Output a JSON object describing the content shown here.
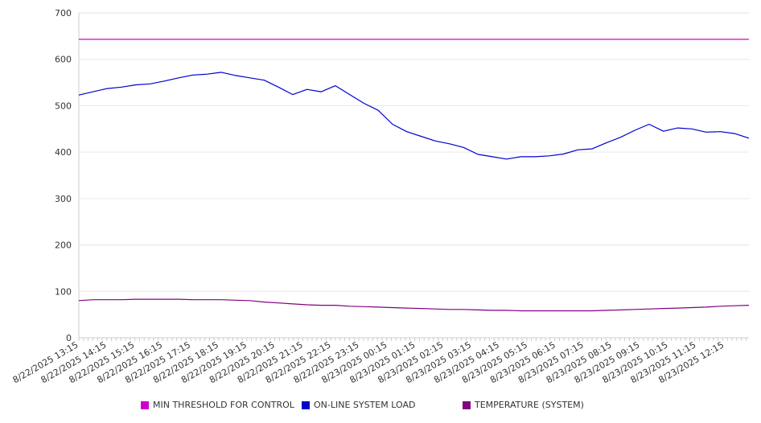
{
  "chart_data": {
    "type": "line",
    "title": "",
    "xlabel": "",
    "ylabel": "",
    "ylim": [
      0,
      700
    ],
    "y_ticks": [
      "0",
      "100",
      "200",
      "300",
      "400",
      "500",
      "600",
      "700"
    ],
    "x_tick_labels": [
      "8/22/2025 13:15",
      "8/22/2025 14:15",
      "8/22/2025 15:15",
      "8/22/2025 16:15",
      "8/22/2025 17:15",
      "8/22/2025 18:15",
      "8/22/2025 19:15",
      "8/22/2025 20:15",
      "8/22/2025 21:15",
      "8/22/2025 22:15",
      "8/22/2025 23:15",
      "8/23/2025 00:15",
      "8/23/2025 01:15",
      "8/23/2025 02:15",
      "8/23/2025 03:15",
      "8/23/2025 04:15",
      "8/23/2025 05:15",
      "8/23/2025 06:15",
      "8/23/2025 07:15",
      "8/23/2025 08:15",
      "8/23/2025 09:15",
      "8/23/2025 10:15",
      "8/23/2025 11:15",
      "8/23/2025 12:15"
    ],
    "grid": true,
    "legend_position": "bottom",
    "x": [
      "8/22/2025 13:15",
      "8/22/2025 13:45",
      "8/22/2025 14:15",
      "8/22/2025 14:45",
      "8/22/2025 15:15",
      "8/22/2025 15:45",
      "8/22/2025 16:15",
      "8/22/2025 16:45",
      "8/22/2025 17:15",
      "8/22/2025 17:45",
      "8/22/2025 18:15",
      "8/22/2025 18:45",
      "8/22/2025 19:15",
      "8/22/2025 19:45",
      "8/22/2025 20:15",
      "8/22/2025 20:45",
      "8/22/2025 21:15",
      "8/22/2025 21:45",
      "8/22/2025 22:15",
      "8/22/2025 22:45",
      "8/22/2025 23:15",
      "8/22/2025 23:45",
      "8/23/2025 00:15",
      "8/23/2025 00:45",
      "8/23/2025 01:15",
      "8/23/2025 01:45",
      "8/23/2025 02:15",
      "8/23/2025 02:45",
      "8/23/2025 03:15",
      "8/23/2025 03:45",
      "8/23/2025 04:15",
      "8/23/2025 04:45",
      "8/23/2025 05:15",
      "8/23/2025 05:45",
      "8/23/2025 06:15",
      "8/23/2025 06:45",
      "8/23/2025 07:15",
      "8/23/2025 07:45",
      "8/23/2025 08:15",
      "8/23/2025 08:45",
      "8/23/2025 09:15",
      "8/23/2025 09:45",
      "8/23/2025 10:15",
      "8/23/2025 10:45",
      "8/23/2025 11:15",
      "8/23/2025 11:45",
      "8/23/2025 12:15",
      "8/23/2025 12:45"
    ],
    "series": [
      {
        "name": "MIN THRESHOLD FOR CONTROL",
        "color": "#cc00cc",
        "values": [
          643,
          643,
          643,
          643,
          643,
          643,
          643,
          643,
          643,
          643,
          643,
          643,
          643,
          643,
          643,
          643,
          643,
          643,
          643,
          643,
          643,
          643,
          643,
          643,
          643,
          643,
          643,
          643,
          643,
          643,
          643,
          643,
          643,
          643,
          643,
          643,
          643,
          643,
          643,
          643,
          643,
          643,
          643,
          643,
          643,
          643,
          643,
          643
        ]
      },
      {
        "name": "ON-LINE SYSTEM LOAD",
        "color": "#0000cc",
        "values": [
          523,
          530,
          537,
          540,
          545,
          547,
          553,
          560,
          566,
          568,
          572,
          565,
          560,
          555,
          540,
          524,
          535,
          530,
          543,
          524,
          505,
          490,
          460,
          444,
          434,
          424,
          418,
          410,
          395,
          390,
          385,
          390,
          390,
          392,
          396,
          405,
          407,
          420,
          432,
          447,
          460,
          445,
          452,
          450,
          443,
          444,
          440,
          430
        ]
      },
      {
        "name": "TEMPERATURE (SYSTEM)",
        "color": "#800080",
        "values": [
          80,
          82,
          82,
          82,
          83,
          83,
          83,
          83,
          82,
          82,
          82,
          81,
          80,
          77,
          75,
          73,
          71,
          70,
          70,
          68,
          67,
          66,
          65,
          64,
          63,
          62,
          61,
          61,
          60,
          59,
          59,
          58,
          58,
          58,
          58,
          58,
          58,
          59,
          60,
          61,
          62,
          63,
          64,
          65,
          66,
          68,
          69,
          70
        ]
      }
    ]
  }
}
